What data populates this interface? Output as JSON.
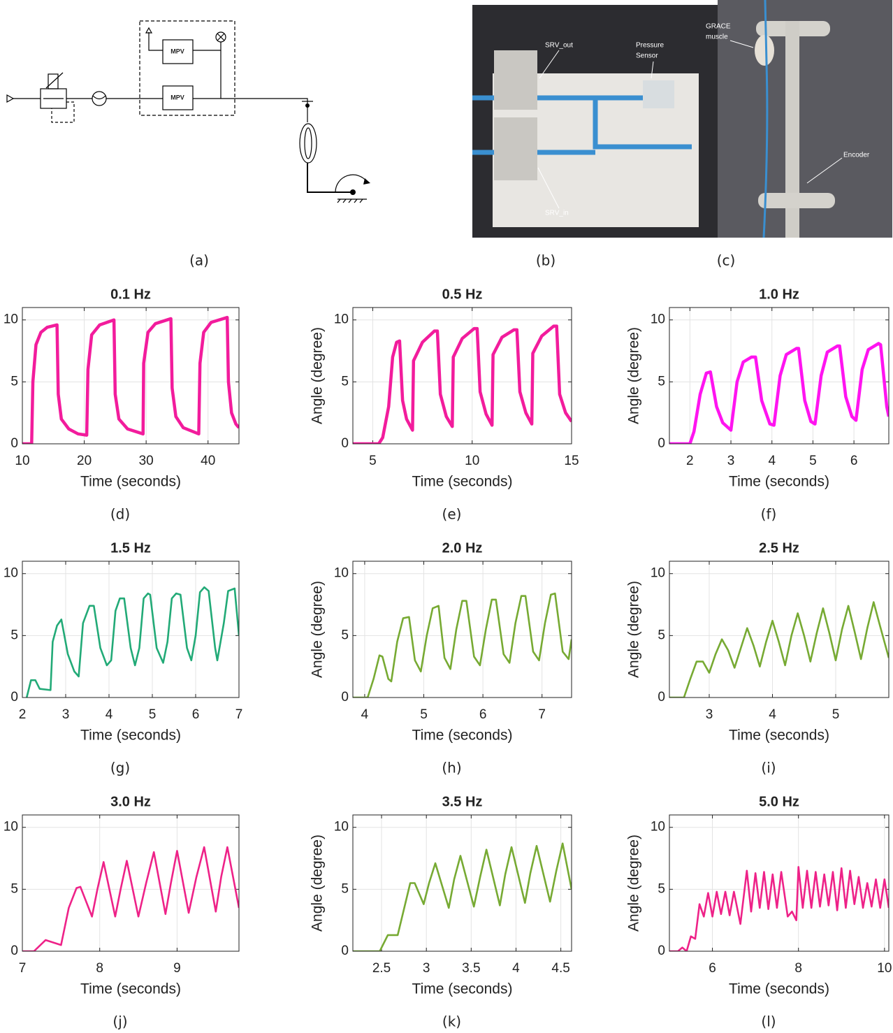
{
  "diagram": {
    "labels": [
      "MPV",
      "MPV"
    ],
    "caption": "(a)"
  },
  "photos": [
    {
      "labels": [
        [
          "SRV_out"
        ],
        [
          "Pressure",
          "Sensor"
        ],
        [
          "SRV_in"
        ]
      ],
      "caption": "(b)"
    },
    {
      "labels": [
        [
          "GRACE",
          "muscle"
        ],
        [
          "Encoder"
        ]
      ],
      "caption": "(c)"
    }
  ],
  "chart_data": [
    {
      "type": "line",
      "title": "0.1 Hz",
      "xlabel": "Time (seconds)",
      "caption": "(d)",
      "x": [
        10,
        11.5,
        11.7,
        12.2,
        13,
        14,
        15.6,
        15.8,
        16.3,
        17.5,
        19,
        20.4,
        20.6,
        21.2,
        22.5,
        24.8,
        25,
        25.6,
        27,
        29.5,
        29.6,
        30.3,
        31.5,
        34,
        34.2,
        34.8,
        36,
        38.5,
        38.7,
        39.3,
        40.5,
        43.1,
        43.3,
        43.8,
        44.5,
        45
      ],
      "series": [
        {
          "color": "#f21c9c",
          "values": [
            0,
            0,
            5,
            8,
            9,
            9.4,
            9.6,
            4,
            2,
            1.2,
            0.8,
            0.7,
            6,
            8.8,
            9.6,
            10,
            4,
            2,
            1.2,
            0.8,
            6.5,
            9,
            9.7,
            10.1,
            4.5,
            2.2,
            1.3,
            0.8,
            6.5,
            9,
            9.8,
            10.2,
            5,
            2.5,
            1.6,
            1.3
          ]
        }
      ],
      "xlim": [
        10,
        45
      ],
      "ylim": [
        0,
        11
      ],
      "xticks": [
        10,
        20,
        30,
        40
      ],
      "yticks": [
        0,
        5,
        10
      ],
      "grid": true
    },
    {
      "type": "line",
      "title": "0.5 Hz",
      "xlabel": "Time (seconds)",
      "ylabel": "Angle (degree)",
      "caption": "(e)",
      "x": [
        4,
        5.3,
        5.5,
        5.8,
        6.0,
        6.2,
        6.35,
        6.5,
        6.7,
        7.0,
        7.05,
        7.5,
        8.1,
        8.25,
        8.4,
        8.7,
        9.0,
        9.05,
        9.5,
        10.1,
        10.25,
        10.4,
        10.7,
        11.0,
        11.05,
        11.5,
        12.1,
        12.25,
        12.4,
        12.7,
        13.0,
        13.05,
        13.5,
        14.1,
        14.25,
        14.4,
        14.7,
        15
      ],
      "series": [
        {
          "color": "#f21c9c",
          "values": [
            0,
            0,
            0.5,
            3,
            7,
            8.2,
            8.3,
            3.5,
            2,
            1.1,
            6.7,
            8.2,
            9.1,
            9.1,
            4,
            2.2,
            1.4,
            7,
            8.5,
            9.3,
            9.3,
            4.2,
            2.4,
            1.5,
            7.2,
            8.6,
            9.2,
            9.2,
            4.2,
            2.5,
            1.6,
            7.3,
            8.7,
            9.5,
            9.5,
            4,
            2.5,
            1.8
          ]
        }
      ],
      "xlim": [
        4,
        15
      ],
      "ylim": [
        0,
        11
      ],
      "xticks": [
        5,
        10,
        15
      ],
      "yticks": [
        0,
        5,
        10
      ],
      "grid": true
    },
    {
      "type": "line",
      "title": "1.0 Hz",
      "xlabel": "Time (seconds)",
      "ylabel": "Angle (degree)",
      "caption": "(f)",
      "x": [
        1.5,
        2.0,
        2.1,
        2.25,
        2.4,
        2.5,
        2.65,
        2.8,
        3.0,
        3.15,
        3.3,
        3.5,
        3.6,
        3.75,
        3.95,
        4.05,
        4.2,
        4.35,
        4.6,
        4.65,
        4.8,
        4.95,
        5.05,
        5.2,
        5.35,
        5.6,
        5.65,
        5.8,
        5.95,
        6.05,
        6.2,
        6.35,
        6.6,
        6.65,
        6.8,
        6.85
      ],
      "series": [
        {
          "color": "#ff14f0",
          "values": [
            0,
            0,
            1,
            4,
            5.7,
            5.8,
            3,
            1.7,
            1.1,
            5,
            6.6,
            7,
            7,
            3.5,
            1.6,
            1.5,
            5.5,
            7.2,
            7.7,
            7.7,
            3.5,
            1.8,
            1.6,
            5.5,
            7.4,
            7.9,
            7.9,
            3.8,
            2.2,
            1.9,
            6,
            7.6,
            8.1,
            8,
            3,
            2.2
          ]
        }
      ],
      "xlim": [
        1.5,
        6.85
      ],
      "ylim": [
        0,
        11
      ],
      "xticks": [
        2,
        3,
        4,
        5,
        6
      ],
      "yticks": [
        0,
        5,
        10
      ],
      "grid": true
    },
    {
      "type": "line",
      "title": "1.5 Hz",
      "xlabel": "Time (seconds)",
      "caption": "(g)",
      "x": [
        2.1,
        2.2,
        2.3,
        2.4,
        2.65,
        2.7,
        2.8,
        2.9,
        3.05,
        3.2,
        3.3,
        3.4,
        3.55,
        3.65,
        3.8,
        3.95,
        4.05,
        4.15,
        4.25,
        4.35,
        4.5,
        4.6,
        4.7,
        4.8,
        4.9,
        4.95,
        5.1,
        5.25,
        5.35,
        5.45,
        5.55,
        5.65,
        5.8,
        5.9,
        6.0,
        6.1,
        6.2,
        6.3,
        6.45,
        6.5,
        6.65,
        6.75,
        6.9,
        7
      ],
      "series": [
        {
          "color": "#22aa77",
          "values": [
            0,
            1.4,
            1.4,
            0.7,
            0.6,
            4.5,
            5.8,
            6.3,
            3.5,
            2.1,
            1.7,
            6,
            7.4,
            7.4,
            4,
            2.6,
            3,
            7,
            8,
            8,
            4,
            2.6,
            4,
            8,
            8.4,
            8.3,
            4,
            2.8,
            4.5,
            8,
            8.4,
            8.3,
            4,
            3,
            5,
            8.5,
            8.9,
            8.6,
            4,
            3,
            6,
            8.6,
            8.8,
            5
          ]
        }
      ],
      "xlim": [
        2,
        7
      ],
      "ylim": [
        0,
        11
      ],
      "xticks": [
        2,
        3,
        4,
        5,
        6,
        7
      ],
      "yticks": [
        0,
        5,
        10
      ],
      "grid": true
    },
    {
      "type": "line",
      "title": "2.0 Hz",
      "xlabel": "Time (seconds)",
      "ylabel": "Angle (degree)",
      "caption": "(h)",
      "x": [
        3.8,
        4.05,
        4.15,
        4.25,
        4.3,
        4.4,
        4.45,
        4.55,
        4.65,
        4.75,
        4.85,
        4.95,
        5.05,
        5.15,
        5.25,
        5.35,
        5.45,
        5.55,
        5.65,
        5.72,
        5.85,
        5.95,
        6.05,
        6.15,
        6.22,
        6.35,
        6.45,
        6.55,
        6.65,
        6.72,
        6.85,
        6.95,
        7.05,
        7.15,
        7.22,
        7.35,
        7.45,
        7.5
      ],
      "series": [
        {
          "color": "#77aa33",
          "values": [
            0,
            0,
            1.5,
            3.4,
            3.3,
            1.5,
            1.3,
            4.5,
            6.4,
            6.5,
            3,
            2.1,
            5,
            7.2,
            7.4,
            3.2,
            2.3,
            5.5,
            7.8,
            7.8,
            3.3,
            2.6,
            5.5,
            7.9,
            7.9,
            3.5,
            2.8,
            6,
            8.2,
            8.2,
            3.7,
            3,
            6,
            8.3,
            8.4,
            3.7,
            3.1,
            4.7
          ]
        }
      ],
      "xlim": [
        3.8,
        7.5
      ],
      "ylim": [
        0,
        11
      ],
      "xticks": [
        4,
        5,
        6,
        7
      ],
      "yticks": [
        0,
        5,
        10
      ],
      "grid": true
    },
    {
      "type": "line",
      "title": "2.5 Hz",
      "xlabel": "Time (seconds)",
      "ylabel": "Angle (degree)",
      "caption": "(i)",
      "x": [
        2.37,
        2.6,
        2.7,
        2.8,
        2.9,
        3.0,
        3.1,
        3.2,
        3.3,
        3.4,
        3.5,
        3.6,
        3.7,
        3.8,
        3.9,
        4.0,
        4.1,
        4.2,
        4.3,
        4.4,
        4.5,
        4.6,
        4.7,
        4.8,
        4.9,
        5.0,
        5.1,
        5.2,
        5.3,
        5.4,
        5.5,
        5.6,
        5.7,
        5.84
      ],
      "series": [
        {
          "color": "#77aa33",
          "values": [
            0,
            0,
            1.5,
            2.9,
            2.9,
            2,
            3.5,
            4.7,
            3.8,
            2.4,
            4,
            5.6,
            4.2,
            2.5,
            4.5,
            6.2,
            4.5,
            2.6,
            5,
            6.8,
            5,
            2.9,
            5.2,
            7.2,
            5.2,
            3,
            5.5,
            7.4,
            5.3,
            3.1,
            5.6,
            7.7,
            5.8,
            3.2
          ]
        }
      ],
      "xlim": [
        2.37,
        5.84
      ],
      "ylim": [
        0,
        11
      ],
      "xticks": [
        3,
        4,
        5
      ],
      "yticks": [
        0,
        5,
        10
      ],
      "grid": true
    },
    {
      "type": "line",
      "title": "3.0 Hz",
      "xlabel": "Time (seconds)",
      "caption": "(j)",
      "x": [
        7,
        7.15,
        7.3,
        7.5,
        7.6,
        7.7,
        7.75,
        7.9,
        7.97,
        8.05,
        8.2,
        8.27,
        8.35,
        8.5,
        8.6,
        8.7,
        8.85,
        8.92,
        9.0,
        9.15,
        9.25,
        9.35,
        9.5,
        9.57,
        9.65,
        9.8
      ],
      "series": [
        {
          "color": "#ee2288",
          "values": [
            0,
            0,
            0.9,
            0.5,
            3.5,
            5.1,
            5.2,
            2.8,
            5,
            7.2,
            2.8,
            5,
            7.3,
            2.8,
            5.5,
            8,
            3,
            5.5,
            8.1,
            3.1,
            6,
            8.4,
            3.2,
            6,
            8.4,
            3.5
          ]
        }
      ],
      "xlim": [
        7,
        9.8
      ],
      "ylim": [
        0,
        11
      ],
      "xticks": [
        7,
        8,
        9
      ],
      "yticks": [
        0,
        5,
        10
      ],
      "grid": true
    },
    {
      "type": "line",
      "title": "3.5 Hz",
      "xlabel": "Time (seconds)",
      "ylabel": "Angle (degree)",
      "caption": "(k)",
      "x": [
        2.18,
        2.48,
        2.57,
        2.68,
        2.82,
        2.87,
        2.97,
        3.03,
        3.1,
        3.25,
        3.31,
        3.38,
        3.53,
        3.6,
        3.67,
        3.82,
        3.88,
        3.95,
        4.1,
        4.16,
        4.23,
        4.38,
        4.45,
        4.52,
        4.62
      ],
      "series": [
        {
          "color": "#77aa33",
          "values": [
            0,
            0,
            1.3,
            1.3,
            5.5,
            5.5,
            3.8,
            5.5,
            7.1,
            3.5,
            5.8,
            7.7,
            3.6,
            6,
            8.2,
            3.7,
            6.2,
            8.4,
            3.9,
            6.3,
            8.5,
            4,
            6.5,
            8.7,
            5
          ]
        }
      ],
      "xlim": [
        2.18,
        4.62
      ],
      "ylim": [
        0,
        11
      ],
      "xticks": [
        2.5,
        3,
        3.5,
        4,
        4.5
      ],
      "yticks": [
        0,
        5,
        10
      ],
      "grid": true
    },
    {
      "type": "line",
      "title": "5.0 Hz",
      "xlabel": "Time (seconds)",
      "ylabel": "Angle (degree)",
      "caption": "(l)",
      "x": [
        5,
        5.2,
        5.3,
        5.4,
        5.5,
        5.6,
        5.7,
        5.8,
        5.9,
        6.0,
        6.1,
        6.2,
        6.3,
        6.4,
        6.5,
        6.65,
        6.8,
        6.9,
        7.0,
        7.1,
        7.2,
        7.3,
        7.4,
        7.5,
        7.6,
        7.75,
        7.85,
        7.95,
        8.0,
        8.1,
        8.2,
        8.3,
        8.4,
        8.5,
        8.6,
        8.7,
        8.8,
        8.9,
        9.0,
        9.1,
        9.2,
        9.3,
        9.4,
        9.5,
        9.6,
        9.7,
        9.8,
        9.9,
        10.0,
        10.1
      ],
      "series": [
        {
          "color": "#ee2288",
          "values": [
            0,
            0,
            0.3,
            0,
            1.2,
            1,
            3.8,
            2.8,
            4.7,
            2.8,
            4.8,
            3,
            4.8,
            2.9,
            4.8,
            2.2,
            6.5,
            3.2,
            6.3,
            3.5,
            6.4,
            3.4,
            6.2,
            3.5,
            6.4,
            2.8,
            3.2,
            2.5,
            6.8,
            3.5,
            6.5,
            3.5,
            6.4,
            3.6,
            6.2,
            3.7,
            6.4,
            3.3,
            6.7,
            3.5,
            6.5,
            3.8,
            6,
            3.5,
            5.5,
            3.6,
            5.8,
            3.5,
            5.8,
            3.5
          ]
        }
      ],
      "xlim": [
        5,
        10.1
      ],
      "ylim": [
        0,
        11
      ],
      "xticks": [
        6,
        8,
        10
      ],
      "yticks": [
        0,
        5,
        10
      ],
      "grid": true
    }
  ]
}
